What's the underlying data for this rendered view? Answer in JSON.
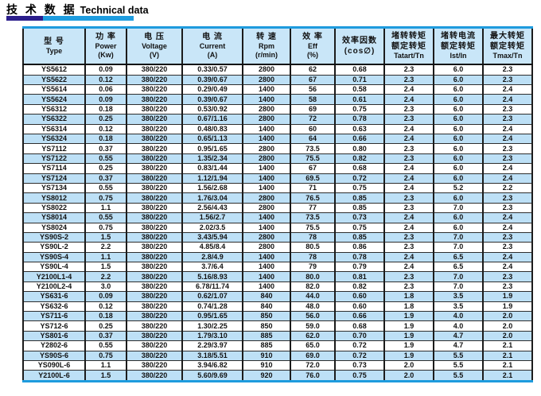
{
  "page": {
    "title_cn": "技 术 数 据",
    "title_en": "Technical data",
    "accent_dark": "#2b1e8c",
    "accent_blue": "#1e9cdf",
    "border_blue": "#1e9bdd",
    "header_bg": "#c9e6f8",
    "zebra_bg": "#bde0f6"
  },
  "table": {
    "columns": [
      {
        "id": "type",
        "lines": [
          "型  号",
          "Type"
        ]
      },
      {
        "id": "power",
        "lines": [
          "功 率",
          "Power",
          "(Kw)"
        ]
      },
      {
        "id": "voltage",
        "lines": [
          "电 压",
          "Voltage",
          "(V)"
        ]
      },
      {
        "id": "current",
        "lines": [
          "电 流",
          "Current",
          "(A)"
        ]
      },
      {
        "id": "rpm",
        "lines": [
          "转 速",
          "Rpm",
          "(r/min)"
        ]
      },
      {
        "id": "eff",
        "lines": [
          "效 率",
          "Eff",
          "(%)"
        ]
      },
      {
        "id": "power-factor",
        "lines": [
          "效率因数",
          "(cos∅)"
        ]
      },
      {
        "id": "tstart-tn",
        "lines": [
          "堵转转矩",
          "额定转矩",
          "Tatart/Tn"
        ]
      },
      {
        "id": "ist-in",
        "lines": [
          "堵转电流",
          "额定转矩",
          "Ist/In"
        ]
      },
      {
        "id": "tmax-tn",
        "lines": [
          "最大转矩",
          "额定转矩",
          "Tmax/Tn"
        ]
      }
    ],
    "rows": [
      [
        "YS5612",
        "0.09",
        "380/220",
        "0.33/0.57",
        "2800",
        "62",
        "0.68",
        "2.3",
        "6.0",
        "2.3"
      ],
      [
        "YS5622",
        "0.12",
        "380/220",
        "0.39/0.67",
        "2800",
        "67",
        "0.71",
        "2.3",
        "6.0",
        "2.3"
      ],
      [
        "YS5614",
        "0.06",
        "380/220",
        "0.29/0.49",
        "1400",
        "56",
        "0.58",
        "2.4",
        "6.0",
        "2.4"
      ],
      [
        "YS5624",
        "0.09",
        "380/220",
        "0.39/0.67",
        "1400",
        "58",
        "0.61",
        "2.4",
        "6.0",
        "2.4"
      ],
      [
        "YS6312",
        "0.18",
        "380/220",
        "0.53/0.92",
        "2800",
        "69",
        "0.75",
        "2.3",
        "6.0",
        "2.3"
      ],
      [
        "YS6322",
        "0.25",
        "380/220",
        "0.67/1.16",
        "2800",
        "72",
        "0.78",
        "2.3",
        "6.0",
        "2.3"
      ],
      [
        "YS6314",
        "0.12",
        "380/220",
        "0.48/0.83",
        "1400",
        "60",
        "0.63",
        "2.4",
        "6.0",
        "2.4"
      ],
      [
        "YS6324",
        "0.18",
        "380/220",
        "0.65/1.13",
        "1400",
        "64",
        "0.66",
        "2.4",
        "6.0",
        "2.4"
      ],
      [
        "YS7112",
        "0.37",
        "380/220",
        "0.95/1.65",
        "2800",
        "73.5",
        "0.80",
        "2.3",
        "6.0",
        "2.3"
      ],
      [
        "YS7122",
        "0.55",
        "380/220",
        "1.35/2.34",
        "2800",
        "75.5",
        "0.82",
        "2.3",
        "6.0",
        "2.3"
      ],
      [
        "YS7114",
        "0.25",
        "380/220",
        "0.83/1.44",
        "1400",
        "67",
        "0.68",
        "2.4",
        "6.0",
        "2.4"
      ],
      [
        "YS7124",
        "0.37",
        "380/220",
        "1.12/1.94",
        "1400",
        "69.5",
        "0.72",
        "2.4",
        "6.0",
        "2.4"
      ],
      [
        "YS7134",
        "0.55",
        "380/220",
        "1.56/2.68",
        "1400",
        "71",
        "0.75",
        "2.4",
        "5.2",
        "2.2"
      ],
      [
        "YS8012",
        "0.75",
        "380/220",
        "1.76/3.04",
        "2800",
        "76.5",
        "0.85",
        "2.3",
        "6.0",
        "2.3"
      ],
      [
        "YS8022",
        "1.1",
        "380/220",
        "2.56/4.43",
        "2800",
        "77",
        "0.85",
        "2.3",
        "7.0",
        "2.3"
      ],
      [
        "YS8014",
        "0.55",
        "380/220",
        "1.56/2.7",
        "1400",
        "73.5",
        "0.73",
        "2.4",
        "6.0",
        "2.4"
      ],
      [
        "YS8024",
        "0.75",
        "380/220",
        "2.02/3.5",
        "1400",
        "75.5",
        "0.75",
        "2.4",
        "6.0",
        "2.4"
      ],
      [
        "YS90S-2",
        "1.5",
        "380/220",
        "3.43/5.94",
        "2800",
        "78",
        "0.85",
        "2.3",
        "7.0",
        "2.3"
      ],
      [
        "YS90L-2",
        "2.2",
        "380/220",
        "4.85/8.4",
        "2800",
        "80.5",
        "0.86",
        "2.3",
        "7.0",
        "2.3"
      ],
      [
        "YS90S-4",
        "1.1",
        "380/220",
        "2.8/4.9",
        "1400",
        "78",
        "0.78",
        "2.4",
        "6.5",
        "2.4"
      ],
      [
        "YS90L-4",
        "1.5",
        "380/220",
        "3.7/6.4",
        "1400",
        "79",
        "0.79",
        "2.4",
        "6.5",
        "2.4"
      ],
      [
        "Y2100L1-4",
        "2.2",
        "380/220",
        "5.16/8.93",
        "1400",
        "80.0",
        "0.81",
        "2.3",
        "7.0",
        "2.3"
      ],
      [
        "Y2100L2-4",
        "3.0",
        "380/220",
        "6.78/11.74",
        "1400",
        "82.0",
        "0.82",
        "2.3",
        "7.0",
        "2.3"
      ],
      [
        "YS631-6",
        "0.09",
        "380/220",
        "0.62/1.07",
        "840",
        "44.0",
        "0.60",
        "1.8",
        "3.5",
        "1.9"
      ],
      [
        "YS632-6",
        "0.12",
        "380/220",
        "0.74/1.28",
        "840",
        "48.0",
        "0.60",
        "1.8",
        "3.5",
        "1.9"
      ],
      [
        "YS711-6",
        "0.18",
        "380/220",
        "0.95/1.65",
        "850",
        "56.0",
        "0.66",
        "1.9",
        "4.0",
        "2.0"
      ],
      [
        "YS712-6",
        "0.25",
        "380/220",
        "1.30/2.25",
        "850",
        "59.0",
        "0.68",
        "1.9",
        "4.0",
        "2.0"
      ],
      [
        "YS801-6",
        "0.37",
        "380/220",
        "1.79/3.10",
        "885",
        "62.0",
        "0.70",
        "1.9",
        "4.7",
        "2.0"
      ],
      [
        "Y2802-6",
        "0.55",
        "380/220",
        "2.29/3.97",
        "885",
        "65.0",
        "0.72",
        "1.9",
        "4.7",
        "2.1"
      ],
      [
        "YS90S-6",
        "0.75",
        "380/220",
        "3.18/5.51",
        "910",
        "69.0",
        "0.72",
        "1.9",
        "5.5",
        "2.1"
      ],
      [
        "YS090L-6",
        "1.1",
        "380/220",
        "3.94/6.82",
        "910",
        "72.0",
        "0.73",
        "2.0",
        "5.5",
        "2.1"
      ],
      [
        "Y2100L-6",
        "1.5",
        "380/220",
        "5.60/9.69",
        "920",
        "76.0",
        "0.75",
        "2.0",
        "5.5",
        "2.1"
      ]
    ]
  }
}
